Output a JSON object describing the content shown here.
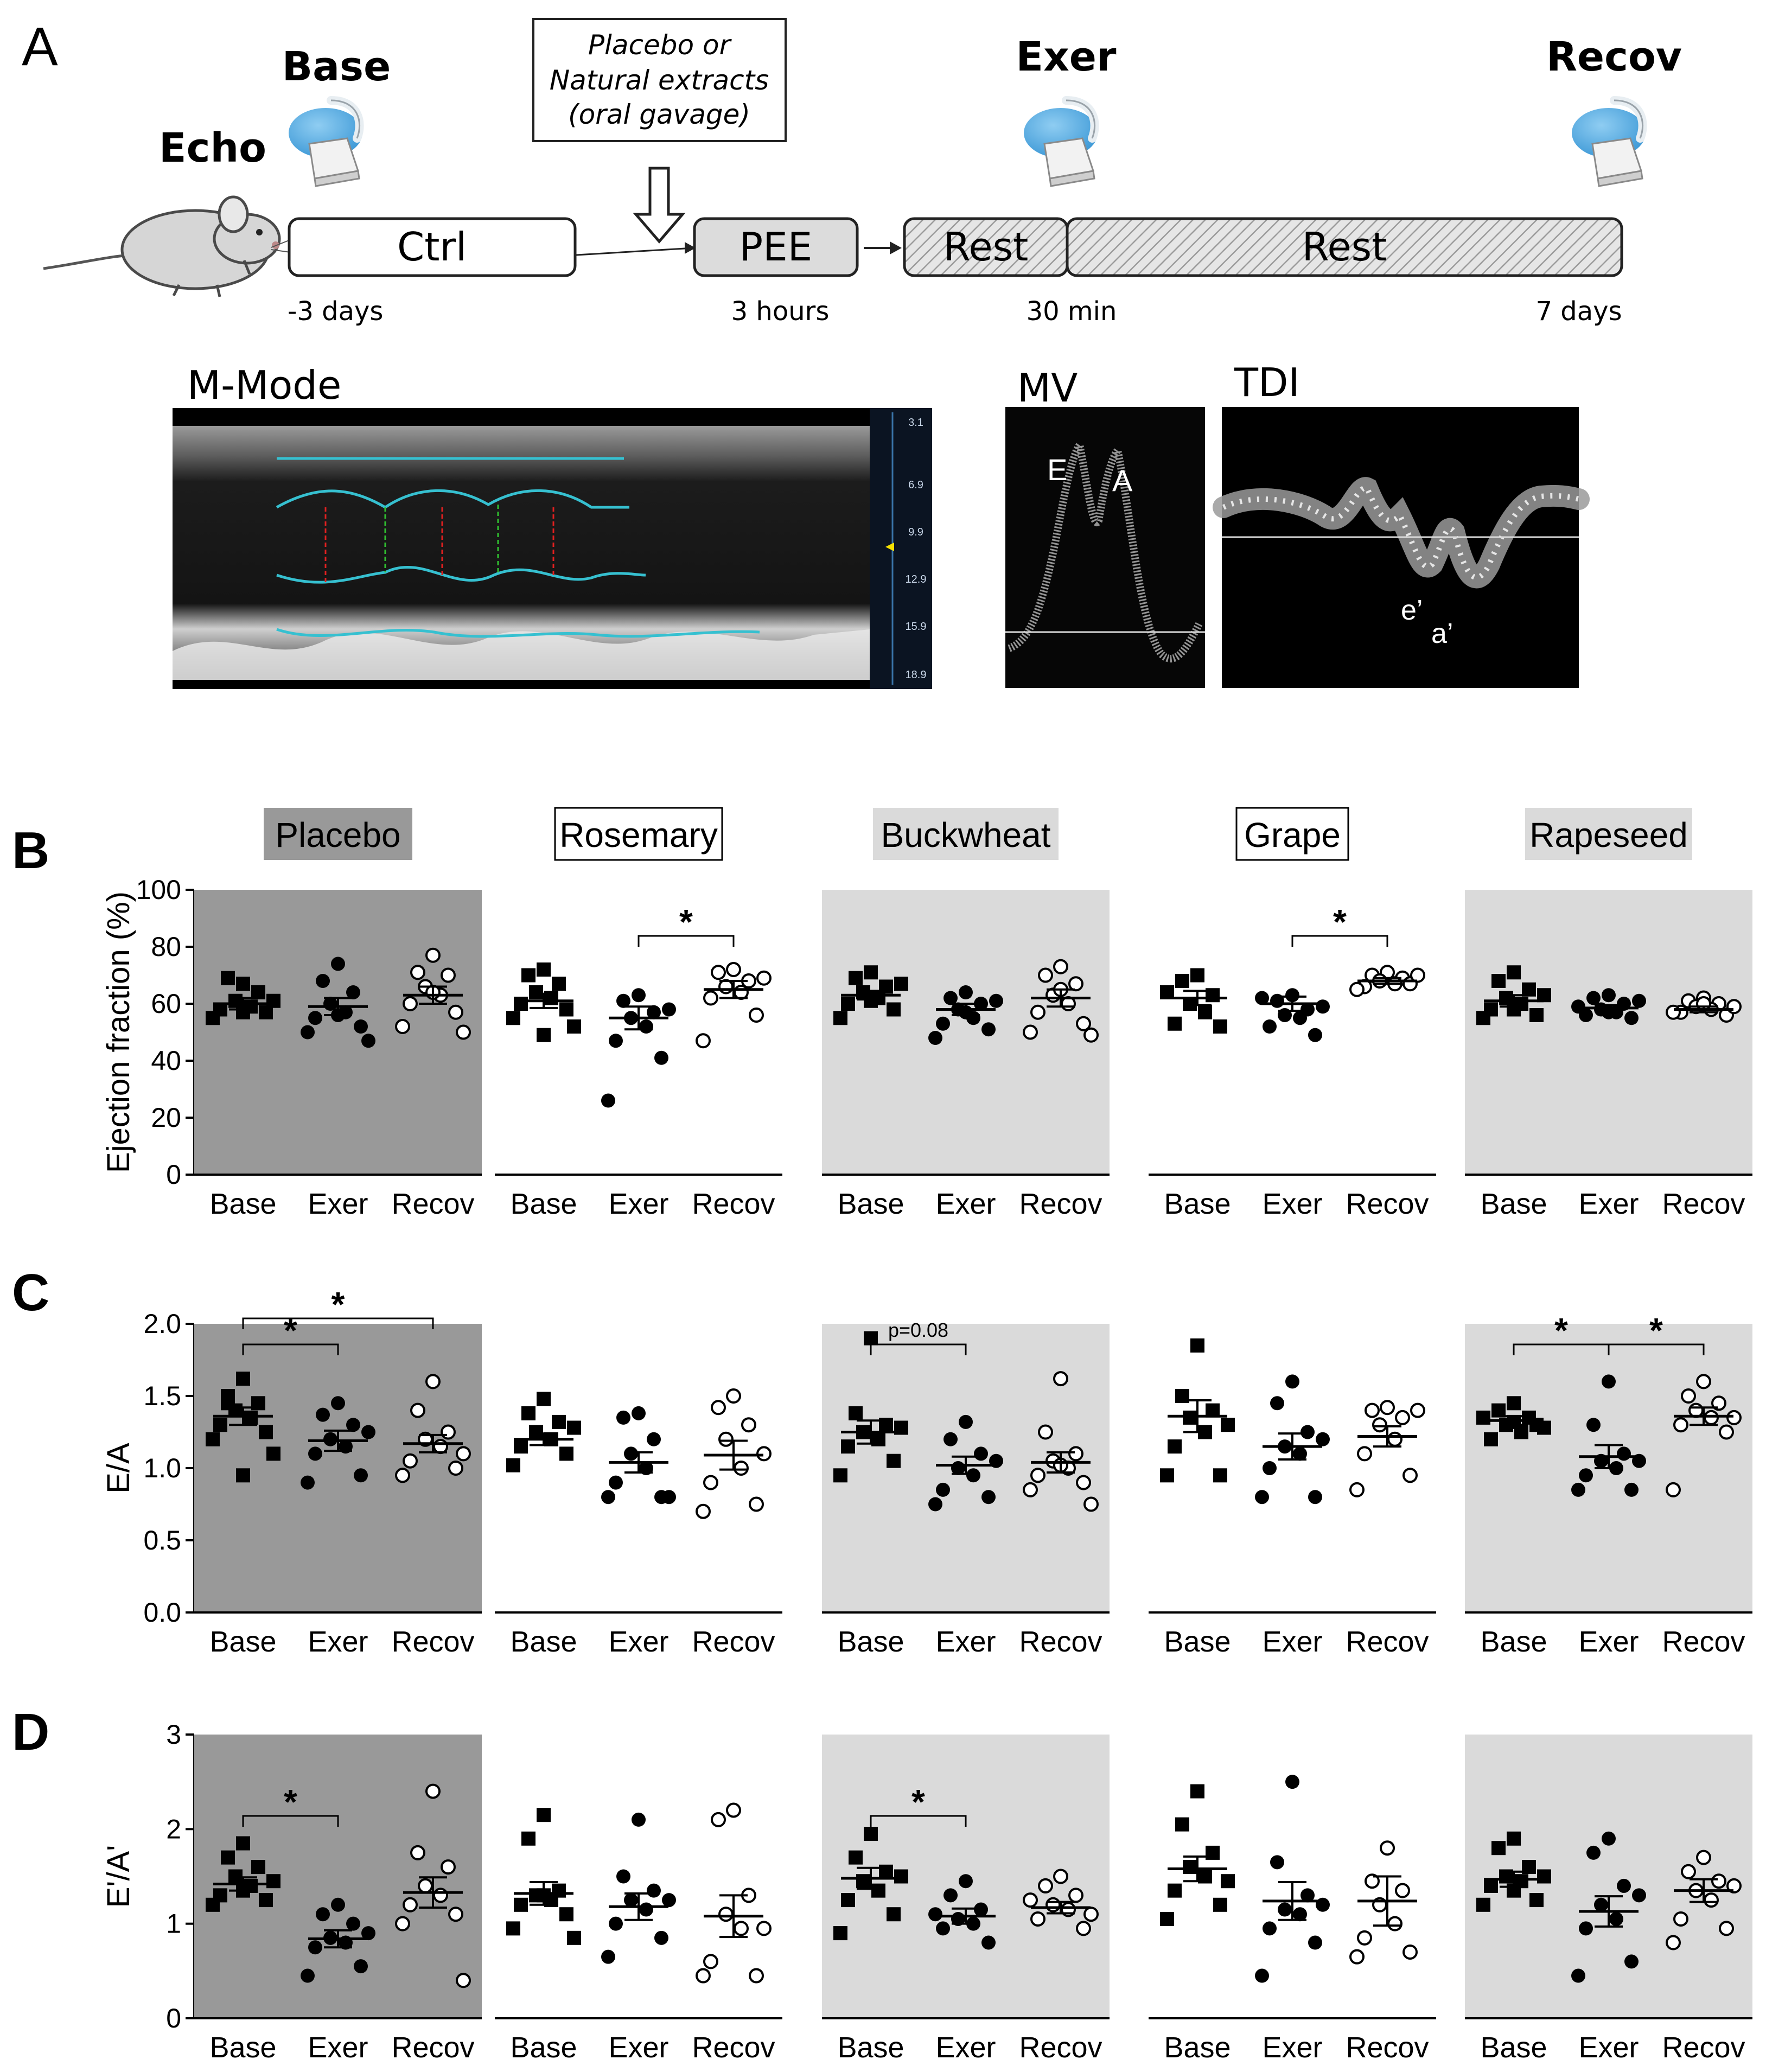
{
  "panel_labels": {
    "A": "A",
    "B": "B",
    "C": "C",
    "D": "D"
  },
  "scheme": {
    "echo_label": "Echo",
    "timepoints": [
      "Base",
      "Exer",
      "Recov"
    ],
    "treatment_box": [
      "Placebo or",
      "Natural extracts",
      "(oral gavage)"
    ],
    "phases": [
      "Ctrl",
      "PEE",
      "Rest",
      "Rest"
    ],
    "durations": [
      "-3 days",
      "3 hours",
      "30 min",
      "7 days"
    ],
    "image_titles": [
      "M-Mode",
      "MV",
      "TDI"
    ],
    "mmode_scale": [
      "3.1",
      "6.9",
      "9.9",
      "12.9",
      "15.9",
      "18.9"
    ],
    "mv_peaks": [
      "E",
      "A"
    ],
    "tdi_peaks": [
      "e’",
      "a’"
    ]
  },
  "colors": {
    "placebo_bg": "#999999",
    "treatment_bg": "#dadada",
    "white": "#ffffff",
    "mmode_trace": "#36c0d0",
    "mmode_systole": "#e02020",
    "mmode_diastole": "#30c030"
  },
  "chart_data": [
    {
      "type": "scatter",
      "panel": "B",
      "ylabel": "Ejection fraction (%)",
      "ylim": [
        0,
        100
      ],
      "yticks": [
        "0",
        "20",
        "40",
        "60",
        "80",
        "100"
      ],
      "categories": [
        "Base",
        "Exer",
        "Recov"
      ],
      "groups": [
        {
          "title": "Placebo",
          "background": "dark",
          "title_box": "filled-dark",
          "Base": [
            67,
            69,
            64,
            61,
            59,
            58,
            57,
            55,
            61,
            57
          ],
          "Exer": [
            74,
            68,
            64,
            60,
            57,
            55,
            52,
            50,
            47,
            56
          ],
          "Recov": [
            77,
            71,
            70,
            66,
            63,
            60,
            57,
            52,
            50,
            64
          ],
          "mean": [
            60,
            59,
            63
          ],
          "sem": [
            2,
            3,
            3
          ],
          "significance": []
        },
        {
          "title": "Rosemary",
          "background": "white",
          "title_box": "outlined",
          "Base": [
            72,
            70,
            67,
            64,
            62,
            60,
            58,
            55,
            52,
            49
          ],
          "Exer": [
            63,
            61,
            57,
            55,
            52,
            47,
            41,
            26,
            58
          ],
          "Recov": [
            72,
            71,
            68,
            66,
            64,
            62,
            56,
            47,
            69
          ],
          "mean": [
            61,
            55,
            65
          ],
          "sem": [
            2.5,
            4,
            3
          ],
          "significance": [
            {
              "from": "Exer",
              "to": "Recov",
              "label": "*"
            }
          ]
        },
        {
          "title": "Buckwheat",
          "background": "light",
          "title_box": "filled-light",
          "Base": [
            71,
            69,
            66,
            64,
            62,
            60,
            58,
            55,
            67,
            61
          ],
          "Exer": [
            64,
            62,
            60,
            58,
            55,
            53,
            51,
            48,
            61,
            57
          ],
          "Recov": [
            73,
            70,
            67,
            63,
            60,
            57,
            53,
            50,
            49,
            65
          ],
          "mean": [
            63,
            58,
            62
          ],
          "sem": [
            1.5,
            2,
            3
          ],
          "significance": []
        },
        {
          "title": "Grape",
          "background": "white",
          "title_box": "outlined",
          "Base": [
            70,
            68,
            63,
            60,
            57,
            53,
            52,
            64
          ],
          "Exer": [
            63,
            61,
            58,
            56,
            55,
            52,
            49,
            62,
            59
          ],
          "Recov": [
            71,
            70,
            69,
            68,
            67,
            66,
            67,
            65,
            70
          ],
          "mean": [
            62,
            60,
            68
          ],
          "sem": [
            2.5,
            2.5,
            1
          ],
          "significance": [
            {
              "from": "Exer",
              "to": "Recov",
              "label": "*"
            }
          ]
        },
        {
          "title": "Rapeseed",
          "background": "light",
          "title_box": "filled-light",
          "Base": [
            71,
            68,
            65,
            62,
            60,
            58,
            56,
            55,
            63,
            58
          ],
          "Exer": [
            63,
            62,
            60,
            58,
            57,
            56,
            55,
            59,
            61,
            57
          ],
          "Recov": [
            62,
            61,
            60,
            59,
            58,
            57,
            56,
            57,
            59,
            60
          ],
          "mean": [
            61,
            58.5,
            58
          ],
          "sem": [
            2,
            1,
            1
          ],
          "significance": []
        }
      ]
    },
    {
      "type": "scatter",
      "panel": "C",
      "ylabel": "E/A",
      "ylim": [
        0,
        2
      ],
      "yticks": [
        "0.0",
        "0.5",
        "1.0",
        "1.5",
        "2.0"
      ],
      "categories": [
        "Base",
        "Exer",
        "Recov"
      ],
      "groups": [
        {
          "title": "",
          "background": "dark",
          "Base": [
            1.62,
            1.5,
            1.45,
            1.4,
            1.35,
            1.3,
            1.25,
            1.2,
            1.1,
            0.95,
            1.45
          ],
          "Exer": [
            1.45,
            1.37,
            1.3,
            1.2,
            1.15,
            1.1,
            0.95,
            0.9,
            1.25
          ],
          "Recov": [
            1.6,
            1.4,
            1.25,
            1.2,
            1.15,
            1.05,
            1.0,
            0.95,
            1.1
          ],
          "mean": [
            1.36,
            1.19,
            1.17
          ],
          "sem": [
            0.06,
            0.07,
            0.06
          ],
          "significance": [
            {
              "from": "Base",
              "to": "Exer",
              "label": "*"
            },
            {
              "from": "Base",
              "to": "Recov",
              "label": "*"
            }
          ]
        },
        {
          "title": "",
          "background": "white",
          "Base": [
            1.48,
            1.38,
            1.32,
            1.25,
            1.2,
            1.15,
            1.1,
            1.02,
            1.28
          ],
          "Exer": [
            1.38,
            1.35,
            1.2,
            1.1,
            1.0,
            0.9,
            0.8,
            0.8,
            0.8
          ],
          "Recov": [
            1.5,
            1.42,
            1.3,
            1.2,
            1.0,
            0.9,
            0.75,
            0.7,
            1.1
          ],
          "mean": [
            1.2,
            1.04,
            1.09
          ],
          "sem": [
            0.04,
            0.07,
            0.1
          ],
          "significance": []
        },
        {
          "title": "",
          "background": "light",
          "Base": [
            1.9,
            1.38,
            1.3,
            1.25,
            1.2,
            1.15,
            1.05,
            0.95,
            1.28
          ],
          "Exer": [
            1.32,
            1.2,
            1.1,
            1.0,
            0.95,
            0.85,
            0.8,
            0.75,
            1.05
          ],
          "Recov": [
            1.62,
            1.25,
            1.1,
            1.05,
            1.0,
            0.95,
            0.9,
            0.85,
            0.75,
            1.02
          ],
          "mean": [
            1.25,
            1.02,
            1.04
          ],
          "sem": [
            0.08,
            0.06,
            0.07
          ],
          "significance": [
            {
              "from": "Base",
              "to": "Exer",
              "label": "p=0.08"
            }
          ]
        },
        {
          "title": "",
          "background": "white",
          "Base": [
            1.85,
            1.5,
            1.4,
            1.35,
            1.25,
            1.15,
            0.95,
            0.95,
            1.3
          ],
          "Exer": [
            1.6,
            1.45,
            1.25,
            1.15,
            1.1,
            1.0,
            0.8,
            0.8,
            1.2
          ],
          "Recov": [
            1.42,
            1.4,
            1.35,
            1.3,
            1.2,
            1.1,
            0.95,
            0.85,
            1.4
          ],
          "mean": [
            1.36,
            1.15,
            1.22
          ],
          "sem": [
            0.11,
            0.09,
            0.07
          ],
          "significance": []
        },
        {
          "title": "",
          "background": "light",
          "Base": [
            1.45,
            1.4,
            1.35,
            1.3,
            1.25,
            1.2,
            1.3,
            1.35,
            1.28,
            1.32
          ],
          "Exer": [
            1.6,
            1.3,
            1.1,
            1.05,
            1.0,
            0.95,
            0.85,
            0.85,
            1.05
          ],
          "Recov": [
            1.6,
            1.5,
            1.45,
            1.4,
            1.35,
            1.3,
            1.25,
            0.85,
            1.35
          ],
          "mean": [
            1.33,
            1.08,
            1.36
          ],
          "sem": [
            0.03,
            0.08,
            0.06
          ],
          "significance": [
            {
              "from": "Base",
              "to": "Exer",
              "label": "*"
            },
            {
              "from": "Exer",
              "to": "Recov",
              "label": "*"
            }
          ]
        }
      ]
    },
    {
      "type": "scatter",
      "panel": "D",
      "ylabel": "E'/A'",
      "ylim": [
        0,
        3
      ],
      "yticks": [
        "0",
        "1",
        "2",
        "3"
      ],
      "categories": [
        "Base",
        "Exer",
        "Recov"
      ],
      "groups": [
        {
          "title": "",
          "background": "dark",
          "Base": [
            1.85,
            1.7,
            1.6,
            1.5,
            1.4,
            1.3,
            1.25,
            1.2,
            1.45,
            1.35
          ],
          "Exer": [
            1.2,
            1.1,
            1.0,
            0.85,
            0.8,
            0.75,
            0.55,
            0.45,
            0.9
          ],
          "Recov": [
            2.4,
            1.75,
            1.6,
            1.4,
            1.3,
            1.2,
            1.1,
            1.0,
            0.4
          ],
          "mean": [
            1.42,
            0.84,
            1.33
          ],
          "sem": [
            0.07,
            0.09,
            0.16
          ],
          "significance": [
            {
              "from": "Base",
              "to": "Exer",
              "label": "*"
            }
          ]
        },
        {
          "title": "",
          "background": "white",
          "Base": [
            2.15,
            1.9,
            1.35,
            1.3,
            1.25,
            1.2,
            1.1,
            0.95,
            0.85,
            1.3
          ],
          "Exer": [
            2.1,
            1.5,
            1.35,
            1.25,
            1.15,
            1.0,
            0.85,
            0.65,
            1.25
          ],
          "Recov": [
            2.2,
            2.1,
            1.3,
            1.1,
            0.95,
            0.6,
            0.45,
            0.45,
            0.95
          ],
          "mean": [
            1.32,
            1.18,
            1.08
          ],
          "sem": [
            0.12,
            0.14,
            0.22
          ],
          "significance": []
        },
        {
          "title": "",
          "background": "light",
          "Base": [
            1.95,
            1.7,
            1.55,
            1.45,
            1.35,
            1.25,
            1.1,
            0.9,
            1.5
          ],
          "Exer": [
            1.45,
            1.3,
            1.15,
            1.05,
            1.0,
            0.95,
            0.8,
            1.1
          ],
          "Recov": [
            1.5,
            1.4,
            1.3,
            1.2,
            1.15,
            1.05,
            0.95,
            1.25,
            1.1
          ],
          "mean": [
            1.48,
            1.08,
            1.17
          ],
          "sem": [
            0.11,
            0.08,
            0.06
          ],
          "significance": [
            {
              "from": "Base",
              "to": "Exer",
              "label": "*"
            }
          ]
        },
        {
          "title": "",
          "background": "white",
          "Base": [
            2.4,
            2.05,
            1.75,
            1.6,
            1.5,
            1.35,
            1.2,
            1.05,
            1.45
          ],
          "Exer": [
            2.5,
            1.65,
            1.3,
            1.15,
            1.1,
            0.95,
            0.8,
            0.45,
            1.2
          ],
          "Recov": [
            1.8,
            1.45,
            1.35,
            1.2,
            1.0,
            0.85,
            0.7,
            0.65
          ],
          "mean": [
            1.58,
            1.24,
            1.24
          ],
          "sem": [
            0.13,
            0.2,
            0.26
          ],
          "significance": []
        },
        {
          "title": "",
          "background": "light",
          "Base": [
            1.9,
            1.8,
            1.6,
            1.5,
            1.45,
            1.4,
            1.25,
            1.2,
            1.5,
            1.35
          ],
          "Exer": [
            1.9,
            1.75,
            1.4,
            1.2,
            1.05,
            0.95,
            0.6,
            0.45,
            1.3
          ],
          "Recov": [
            1.7,
            1.55,
            1.45,
            1.35,
            1.25,
            1.05,
            0.95,
            0.8,
            1.4
          ],
          "mean": [
            1.47,
            1.13,
            1.35
          ],
          "sem": [
            0.08,
            0.16,
            0.12
          ],
          "significance": []
        }
      ]
    }
  ]
}
